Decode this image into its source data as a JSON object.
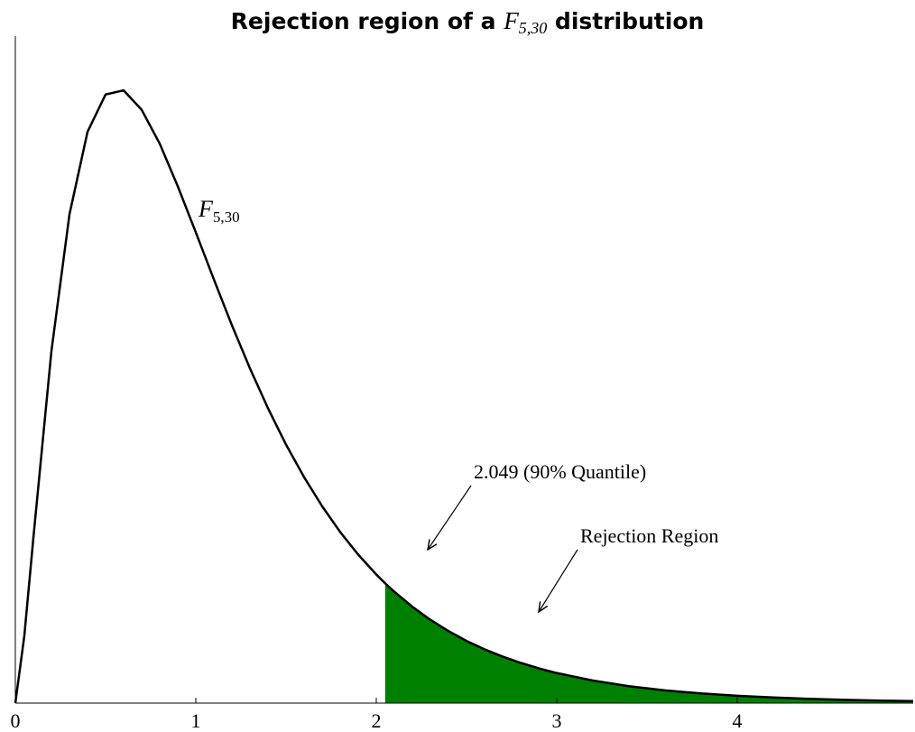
{
  "chart_data": {
    "type": "line",
    "title": {
      "before": "Rejection region of a",
      "letter": "F",
      "subscript": "5,30",
      "after": "distribution"
    },
    "x": [
      0,
      0.05,
      0.1,
      0.2,
      0.3,
      0.4,
      0.5,
      0.6,
      0.7,
      0.8,
      0.9,
      1.0,
      1.1,
      1.2,
      1.3,
      1.4,
      1.5,
      1.6,
      1.7,
      1.8,
      1.9,
      2.0,
      2.049,
      2.1,
      2.2,
      2.3,
      2.4,
      2.5,
      2.6,
      2.7,
      2.8,
      2.9,
      3.0,
      3.2,
      3.4,
      3.6,
      3.8,
      4.0,
      4.2,
      4.4,
      4.6,
      4.8,
      4.975
    ],
    "series": [
      {
        "name": {
          "letter": "F",
          "subscript": "5,30"
        },
        "color": "#000000",
        "values": [
          0,
          0.081,
          0.1984,
          0.4223,
          0.5863,
          0.6852,
          0.73,
          0.7349,
          0.7116,
          0.671,
          0.6199,
          0.5646,
          0.5082,
          0.4532,
          0.4015,
          0.3536,
          0.31,
          0.271,
          0.2361,
          0.2052,
          0.1781,
          0.1543,
          0.1437,
          0.1336,
          0.1156,
          0.0999,
          0.0864,
          0.0746,
          0.0645,
          0.0558,
          0.0483,
          0.0417,
          0.0361,
          0.0271,
          0.0203,
          0.0153,
          0.0116,
          0.0088,
          0.0067,
          0.0051,
          0.0039,
          0.003,
          0.0024
        ]
      }
    ],
    "rejection_start": 2.049,
    "rejection_color": "#008000",
    "annotations": [
      "2.049 (90% Quantile)",
      "Rejection Region"
    ],
    "xlim": [
      0,
      4.975
    ],
    "xticks": [
      0,
      1,
      2,
      3,
      4
    ],
    "ylim": [
      0,
      0.8
    ]
  }
}
